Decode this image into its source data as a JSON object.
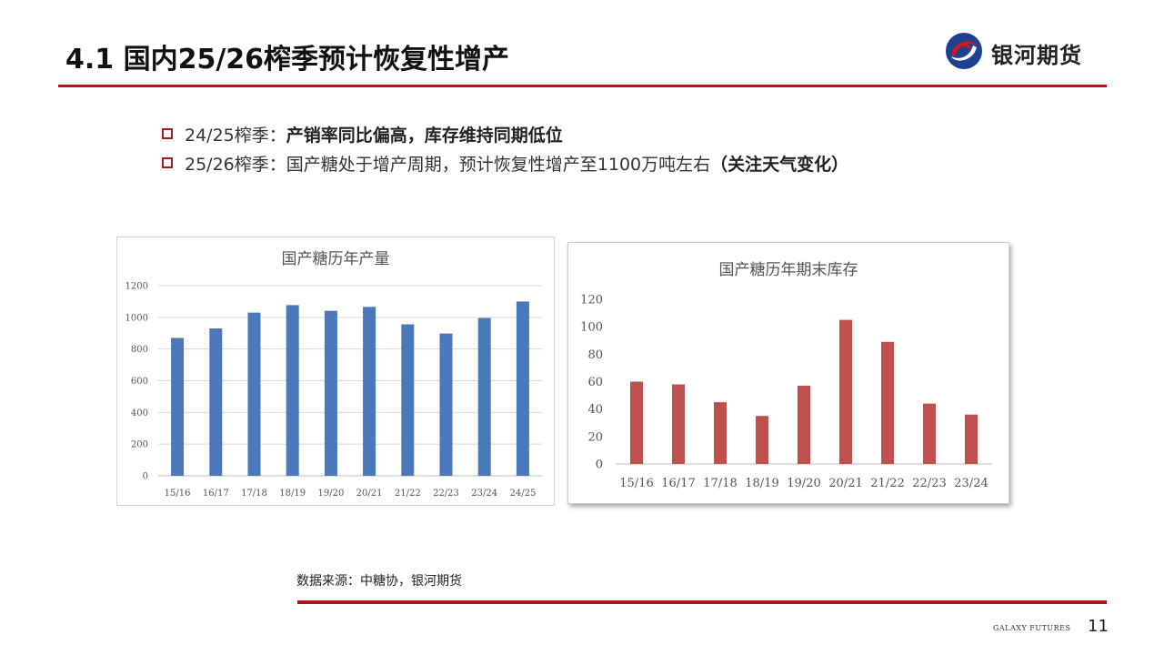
{
  "header": {
    "title": "4.1 国内25/26榨季预计恢复性增产",
    "logo_text": "银河期货"
  },
  "bullets": [
    {
      "prefix": "24/25榨季：",
      "bold": "产销率同比偏高，库存维持同期低位",
      "rest": "",
      "bold2": ""
    },
    {
      "prefix": "25/26榨季：",
      "bold": "",
      "rest": "国产糖处于增产周期，预计恢复性增产至1100万吨左右",
      "bold2": "（关注天气变化）"
    }
  ],
  "colors": {
    "accent": "#b3141b",
    "production_bar": "#4a78b8",
    "inventory_bar": "#c0504d"
  },
  "icons": {
    "logo": "galaxy-futures-logo-icon",
    "bullet": "square-bullet-icon"
  },
  "chart_data": [
    {
      "type": "bar",
      "title": "国产糖历年产量",
      "categories": [
        "15/16",
        "16/17",
        "17/18",
        "18/19",
        "19/20",
        "20/21",
        "21/22",
        "22/23",
        "23/24",
        "24/25"
      ],
      "values": [
        870,
        930,
        1030,
        1077,
        1041,
        1066,
        956,
        898,
        996,
        1100
      ],
      "yticks": [
        0,
        200,
        400,
        600,
        800,
        1000,
        1200
      ],
      "ylim": [
        0,
        1200
      ],
      "grid": true
    },
    {
      "type": "bar",
      "title": "国产糖历年期末库存",
      "categories": [
        "15/16",
        "16/17",
        "17/18",
        "18/19",
        "19/20",
        "20/21",
        "21/22",
        "22/23",
        "23/24"
      ],
      "values": [
        60,
        58,
        45,
        35,
        57,
        105,
        89,
        44,
        36
      ],
      "yticks": [
        0,
        20,
        40,
        60,
        80,
        100,
        120
      ],
      "ylim": [
        0,
        120
      ],
      "grid": false
    }
  ],
  "source_note": "数据来源：中糖协，银河期货",
  "footer": {
    "brand": "GALAXY FUTURES",
    "page": "11"
  }
}
